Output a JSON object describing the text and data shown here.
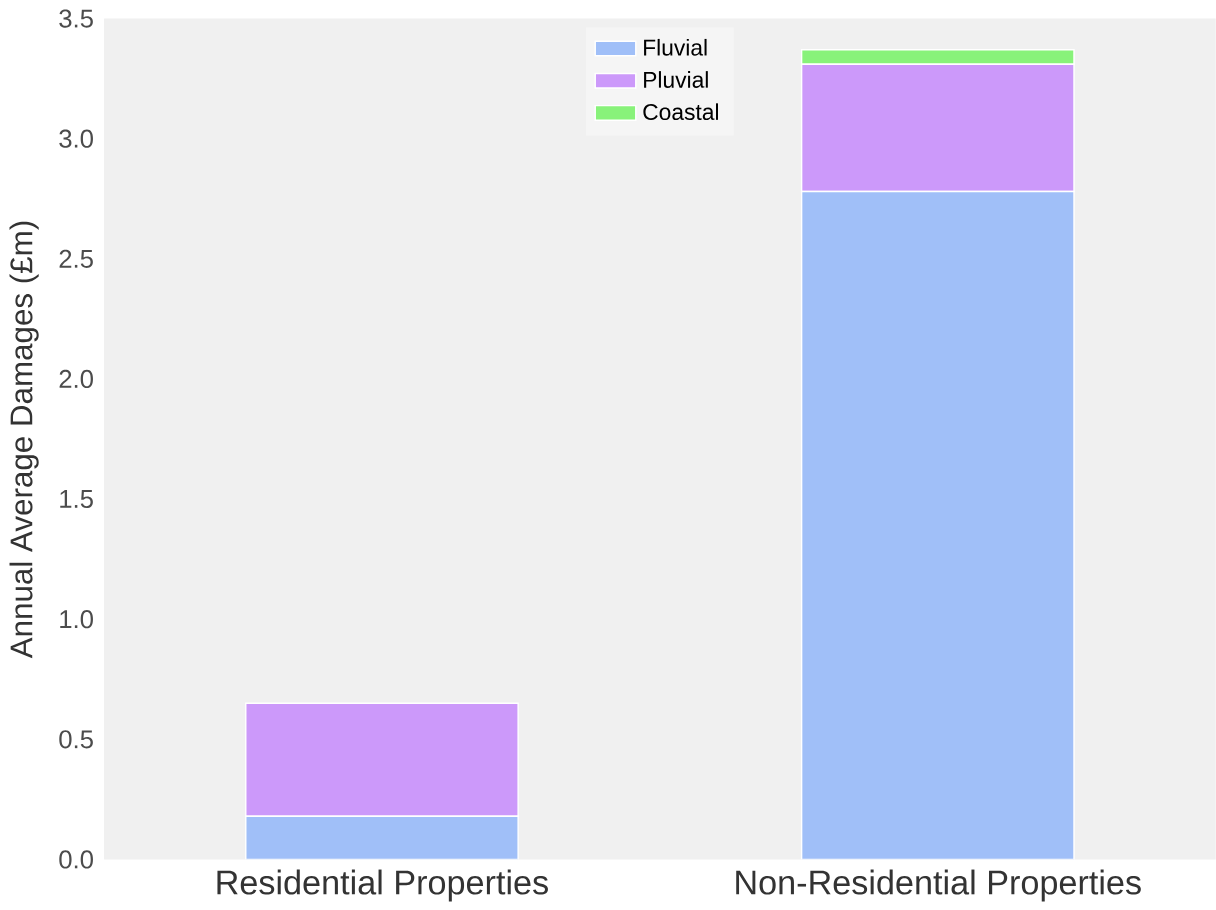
{
  "chart_data": {
    "type": "bar",
    "stacked": true,
    "ylabel": "Annual Average Damages (£m)",
    "categories": [
      "Residential Properties",
      "Non-Residential Properties"
    ],
    "series": [
      {
        "name": "Fluvial",
        "color": "#a0bff8",
        "values": [
          0.18,
          2.78
        ]
      },
      {
        "name": "Pluvial",
        "color": "#cc99fa",
        "values": [
          0.47,
          0.53
        ]
      },
      {
        "name": "Coastal",
        "color": "#88f27a",
        "values": [
          0,
          0.06
        ]
      }
    ],
    "ylim": [
      0,
      3.5
    ],
    "yticks": [
      {
        "value": 0,
        "label": "0.0"
      },
      {
        "value": 0.5,
        "label": "0.5"
      },
      {
        "value": 1,
        "label": "1.0"
      },
      {
        "value": 1.5,
        "label": "1.5"
      },
      {
        "value": 2,
        "label": "2.0"
      },
      {
        "value": 2.5,
        "label": "2.5"
      },
      {
        "value": 3,
        "label": "3.0"
      },
      {
        "value": 3.5,
        "label": "3.5"
      }
    ],
    "legend": "top",
    "grid": false
  }
}
